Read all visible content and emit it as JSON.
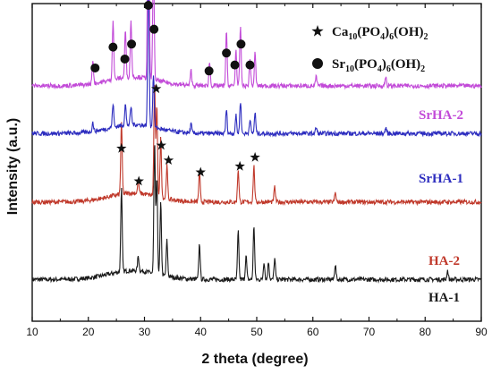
{
  "chart_data": {
    "type": "line",
    "xlabel": "2 theta (degree)",
    "ylabel": "Intensity (a.u.)",
    "xlim": [
      10,
      90
    ],
    "xticks": [
      10,
      20,
      30,
      40,
      50,
      60,
      70,
      80,
      90
    ],
    "ylim": [
      0,
      100
    ],
    "grid": false,
    "legend_position": "top-right",
    "legend": [
      {
        "marker": "star",
        "text": "Ca10(PO4)6(OH)2",
        "base": "Ca",
        "parts": [
          [
            "10"
          ],
          [
            "(PO"
          ],
          [
            "4"
          ],
          [
            ")"
          ],
          [
            "6"
          ],
          [
            "(OH)"
          ],
          [
            "2"
          ]
        ]
      },
      {
        "marker": "dot",
        "text": "Sr10(PO4)6(OH)2",
        "base": "Sr"
      }
    ],
    "series": [
      {
        "name": "HA-1",
        "color": "#1a1a1a",
        "baseline": 14,
        "peaks": [
          [
            25.9,
            28
          ],
          [
            28.9,
            5
          ],
          [
            31.8,
            44
          ],
          [
            32.2,
            32
          ],
          [
            32.9,
            24
          ],
          [
            34.0,
            12
          ],
          [
            39.8,
            12
          ],
          [
            46.7,
            16
          ],
          [
            48.1,
            8
          ],
          [
            49.5,
            18
          ],
          [
            51.3,
            6
          ],
          [
            52.1,
            6
          ],
          [
            53.2,
            7
          ],
          [
            64.0,
            5
          ],
          [
            84.0,
            3
          ]
        ]
      },
      {
        "name": "HA-2",
        "color": "#c0392b",
        "baseline": 40,
        "peaks": [
          [
            25.9,
            24
          ],
          [
            28.9,
            4
          ],
          [
            31.8,
            38
          ],
          [
            32.2,
            30
          ],
          [
            32.9,
            20
          ],
          [
            34.0,
            11
          ],
          [
            39.8,
            10
          ],
          [
            46.7,
            11
          ],
          [
            49.5,
            12
          ],
          [
            53.2,
            5
          ],
          [
            64.0,
            3
          ]
        ]
      },
      {
        "name": "SrHA-1",
        "color": "#2d2dbf",
        "baseline": 63,
        "peaks": [
          [
            20.8,
            3
          ],
          [
            24.4,
            8
          ],
          [
            26.6,
            7
          ],
          [
            27.6,
            6
          ],
          [
            30.7,
            54
          ],
          [
            31.6,
            18
          ],
          [
            38.3,
            3
          ],
          [
            44.6,
            8
          ],
          [
            46.3,
            6
          ],
          [
            47.1,
            11
          ],
          [
            48.8,
            5
          ],
          [
            49.7,
            7
          ],
          [
            60.6,
            2
          ],
          [
            73.0,
            2
          ]
        ]
      },
      {
        "name": "SrHA-2",
        "color": "#c24ad8",
        "baseline": 79,
        "peaks": [
          [
            20.8,
            8
          ],
          [
            24.4,
            20
          ],
          [
            26.6,
            16
          ],
          [
            27.6,
            19
          ],
          [
            30.7,
            99
          ],
          [
            31.6,
            42
          ],
          [
            38.3,
            5
          ],
          [
            41.6,
            8
          ],
          [
            44.6,
            18
          ],
          [
            46.3,
            12
          ],
          [
            47.1,
            20
          ],
          [
            48.8,
            9
          ],
          [
            49.7,
            11
          ],
          [
            60.6,
            3
          ],
          [
            73.0,
            3
          ]
        ]
      }
    ],
    "annotations": {
      "star_markers": [
        [
          25.9,
          58
        ],
        [
          29.0,
          47
        ],
        [
          32.1,
          78
        ],
        [
          33.0,
          59
        ],
        [
          34.3,
          54
        ],
        [
          40.0,
          50
        ],
        [
          47.0,
          52
        ],
        [
          49.7,
          55
        ]
      ],
      "dot_markers": [
        [
          21.2,
          85
        ],
        [
          24.4,
          92
        ],
        [
          26.5,
          88
        ],
        [
          27.7,
          93
        ],
        [
          30.7,
          106
        ],
        [
          31.7,
          98
        ],
        [
          41.5,
          84
        ],
        [
          44.6,
          90
        ],
        [
          46.1,
          86
        ],
        [
          47.2,
          93
        ],
        [
          48.8,
          86
        ]
      ]
    }
  }
}
